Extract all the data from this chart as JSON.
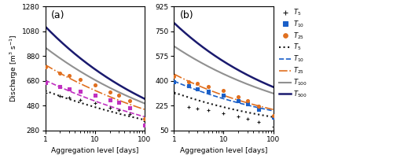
{
  "panel_a": {
    "title": "(a)",
    "ylabel": "Discharge [$\\mathrm{m}^3\\ \\mathrm{s}^{-1}$]",
    "xlabel": "Aggregation level [days]",
    "ylim": [
      280,
      1280
    ],
    "yticks": [
      280,
      480,
      680,
      880,
      1080,
      1280
    ],
    "xlim": [
      1,
      100
    ],
    "curves": {
      "T500_line": {
        "params": [
          1120,
          -0.16
        ],
        "color": "#1a1a6e",
        "style": "solid",
        "lw": 1.8
      },
      "T100_line": {
        "params": [
          950,
          -0.14
        ],
        "color": "#909090",
        "style": "solid",
        "lw": 1.5
      },
      "T25_scatter": {
        "x": [
          1,
          2,
          3,
          5,
          10,
          20,
          30,
          50,
          100
        ],
        "y": [
          790,
          745,
          720,
          690,
          645,
          590,
          565,
          520,
          375
        ],
        "color": "#e07020",
        "marker": "o"
      },
      "T25_line": {
        "params": [
          810,
          -0.128
        ],
        "color": "#e07020",
        "style": "dashdot",
        "lw": 1.2
      },
      "T10_scatter": {
        "x": [
          1,
          2,
          3,
          5,
          10,
          20,
          30,
          50,
          100
        ],
        "y": [
          665,
          635,
          615,
          595,
          565,
          525,
          505,
          465,
          325
        ],
        "color": "#c030c0",
        "marker": "s"
      },
      "T10_line": {
        "params": [
          685,
          -0.122
        ],
        "color": "#c030c0",
        "style": "dashed",
        "lw": 1.2
      },
      "T5_scatter": {
        "x": [
          1,
          2,
          3,
          5,
          10,
          20,
          30,
          50,
          100
        ],
        "y": [
          585,
          560,
          545,
          525,
          498,
          462,
          445,
          412,
          355
        ],
        "color": "#1a1a1a",
        "marker": "+"
      },
      "T5_line": {
        "params": [
          600,
          -0.108
        ],
        "color": "#1a1a1a",
        "style": "dotted",
        "lw": 1.5
      }
    }
  },
  "panel_b": {
    "title": "(b)",
    "xlabel": "Aggregation level [days]",
    "ylim": [
      50,
      925
    ],
    "yticks": [
      50,
      225,
      400,
      575,
      750,
      925
    ],
    "xlim": [
      1,
      100
    ],
    "curves": {
      "T500_line": {
        "params": [
          810,
          -0.178
        ],
        "color": "#1a1a6e",
        "style": "solid",
        "lw": 1.8
      },
      "T100_line": {
        "params": [
          645,
          -0.158
        ],
        "color": "#909090",
        "style": "solid",
        "lw": 1.5
      },
      "T25_scatter": {
        "x": [
          1,
          2,
          3,
          5,
          10,
          20,
          30,
          50,
          100
        ],
        "y": [
          430,
          395,
          380,
          360,
          330,
          285,
          260,
          220,
          155
        ],
        "color": "#e07020",
        "marker": "o"
      },
      "T25_line": {
        "params": [
          448,
          -0.178
        ],
        "color": "#e07020",
        "style": "dashdot",
        "lw": 1.2
      },
      "T10_scatter": {
        "x": [
          1,
          2,
          3,
          5,
          10,
          20,
          30,
          50,
          100
        ],
        "y": [
          395,
          365,
          345,
          325,
          298,
          260,
          240,
          200,
          142
        ],
        "color": "#1a5fc8",
        "marker": "s"
      },
      "T10_line": {
        "params": [
          398,
          -0.163
        ],
        "color": "#1a5fc8",
        "style": "dashed",
        "lw": 1.2
      },
      "T5_scatter": {
        "x": [
          1,
          2,
          3,
          5,
          10,
          20,
          30,
          50,
          100
        ],
        "y": [
          310,
          215,
          205,
          195,
          170,
          148,
          130,
          108,
          78
        ],
        "color": "#1a1a1a",
        "marker": "+"
      },
      "T5_line": {
        "params": [
          318,
          -0.172
        ],
        "color": "#1a1a1a",
        "style": "dotted",
        "lw": 1.5
      }
    }
  },
  "legend": {
    "scatter_entries": [
      {
        "label": "$T_5$",
        "color": "#1a1a1a",
        "marker": "+",
        "ms": 5
      },
      {
        "label": "$T_{10}$",
        "color": "#1a5fc8",
        "marker": "s",
        "ms": 4
      },
      {
        "label": "$T_{25}$",
        "color": "#e07020",
        "marker": "o",
        "ms": 4
      }
    ],
    "line_entries": [
      {
        "label": "$T_5$",
        "color": "#1a1a1a",
        "style": "dotted",
        "lw": 1.5
      },
      {
        "label": "$T_{10}$",
        "color": "#1a5fc8",
        "style": "dashed",
        "lw": 1.2
      },
      {
        "label": "$T_{25}$",
        "color": "#e07020",
        "style": "dashdot",
        "lw": 1.2
      },
      {
        "label": "$T_{100}$",
        "color": "#909090",
        "style": "solid",
        "lw": 1.5
      },
      {
        "label": "$T_{500}$",
        "color": "#1a1a6e",
        "style": "solid",
        "lw": 1.8
      }
    ]
  }
}
